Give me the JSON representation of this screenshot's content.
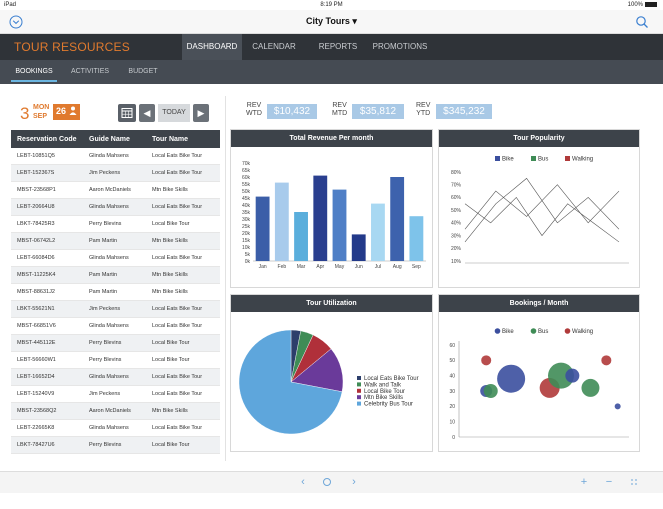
{
  "statusbar": {
    "device": "iPad",
    "time": "8:19 PM",
    "battery": "100%"
  },
  "navbar": {
    "title": "City Tours",
    "title_caret": "▾"
  },
  "menubar": {
    "brand": "TOUR RESOURCES",
    "tabs": [
      {
        "label": "DASHBOARD",
        "active": true
      },
      {
        "label": "CALENDAR",
        "active": false
      },
      {
        "label": "REPORTS",
        "active": false
      },
      {
        "label": "PROMOTIONS",
        "active": false
      }
    ]
  },
  "submenu": {
    "tabs": [
      {
        "label": "BOOKINGS",
        "active": true
      },
      {
        "label": "ACTIVITIES",
        "active": false
      },
      {
        "label": "BUDGET",
        "active": false
      }
    ]
  },
  "datebar": {
    "day": "3",
    "month": "MON",
    "month2": "SEP",
    "badge_count": "26",
    "today_label": "TODAY",
    "prev_label": "◀",
    "next_label": "▶"
  },
  "revenue": [
    {
      "label1": "REV",
      "label2": "WTD",
      "value": "$10,432"
    },
    {
      "label1": "REV",
      "label2": "MTD",
      "value": "$35,812"
    },
    {
      "label1": "REV",
      "label2": "YTD",
      "value": "$345,232"
    }
  ],
  "table": {
    "headers": [
      "Reservation Code",
      "Guide Name",
      "Tour Name"
    ],
    "rows": [
      [
        "LEBT-10851Q5",
        "Glinda Mahsens",
        "Local Eats Bike Tour"
      ],
      [
        "LEBT-152367S",
        "Jim Peckens",
        "Local Eats Bike Tour"
      ],
      [
        "MBST-23568P1",
        "Aaron McDaniels",
        "Mtn Bike Skills"
      ],
      [
        "LEBT-20664U8",
        "Glinda Mahsens",
        "Local Eats Bike Tour"
      ],
      [
        "LBKT-78425R3",
        "Perry Blevins",
        "Local Bike Tour"
      ],
      [
        "MBST-06742L2",
        "Pam Martin",
        "Mtn Bike Skills"
      ],
      [
        "LEBT-66084D6",
        "Glinda Mahsens",
        "Local Eats Bike Tour"
      ],
      [
        "MBST-11225K4",
        "Pam Martin",
        "Mtn Bike Skills"
      ],
      [
        "MBST-88631J2",
        "Pam Martin",
        "Mtn Bike Skills"
      ],
      [
        "LBKT-55621N1",
        "Jim Peckens",
        "Local Eats Bike Tour"
      ],
      [
        "MBST-66851V6",
        "Glinda Mahsens",
        "Local Eats Bike Tour"
      ],
      [
        "MBST-445112E",
        "Perry Blevins",
        "Local Bike Tour"
      ],
      [
        "LEBT-56660W1",
        "Perry Blevins",
        "Local Bike Tour"
      ],
      [
        "LEBT-16652D4",
        "Glinda Mahsens",
        "Local Eats Bike Tour"
      ],
      [
        "LEBT-15240V9",
        "Jim Peckens",
        "Local Eats Bike Tour"
      ],
      [
        "MBST-23568Q2",
        "Aaron McDaniels",
        "Mtn Bike Skills"
      ],
      [
        "LEBT-22665K8",
        "Glinda Mahsens",
        "Local Eats Bike Tour"
      ],
      [
        "LBKT-78427U6",
        "Perry Blevins",
        "Local Bike Tour"
      ]
    ]
  },
  "panels": {
    "revenue_title": "Total Revenue Per month",
    "popularity_title": "Tour Popularity",
    "utilization_title": "Tour Utilization",
    "bookings_title": "Bookings / Month"
  },
  "chart_data": [
    {
      "type": "bar",
      "title": "Total Revenue Per month",
      "categories": [
        "Jan",
        "Feb",
        "Mar",
        "Apr",
        "May",
        "Jun",
        "Jul",
        "Aug",
        "Sep"
      ],
      "values": [
        46,
        56,
        35,
        61,
        51,
        19,
        41,
        60,
        32
      ],
      "colors": [
        "#3b5ea8",
        "#a8cbec",
        "#5aaedc",
        "#2a3f8f",
        "#4f7fc6",
        "#233a8a",
        "#a8d8f2",
        "#3d62ad",
        "#7ec3ea"
      ],
      "yticks": [
        "0k",
        "5k",
        "10k",
        "15k",
        "20k",
        "25k",
        "30k",
        "35k",
        "40k",
        "45k",
        "50k",
        "55k",
        "60k",
        "65k",
        "70k"
      ],
      "ylim": [
        0,
        70
      ]
    },
    {
      "type": "line",
      "title": "Tour Popularity",
      "legend": [
        "Bike",
        "Bus",
        "Walking"
      ],
      "legend_colors": [
        "#3b4f9e",
        "#3f8c56",
        "#b03a3a"
      ],
      "yticks": [
        "10%",
        "20%",
        "30%",
        "40%",
        "50%",
        "60%",
        "70%",
        "80%"
      ],
      "ylim": [
        10,
        80
      ],
      "series": [
        {
          "name": "Bike",
          "values": [
            25,
            55,
            75,
            40,
            60,
            35
          ]
        },
        {
          "name": "Bus",
          "values": [
            35,
            65,
            45,
            70,
            40,
            65
          ]
        },
        {
          "name": "Walking",
          "values": [
            55,
            40,
            60,
            30,
            55,
            40,
            25
          ]
        }
      ]
    },
    {
      "type": "pie",
      "title": "Tour Utilization",
      "labels": [
        "Local Eats Bike Tour",
        "Walk and Talk",
        "Local Bike Tour",
        "Mtn Bike Skills",
        "Celebrity Bus Tour"
      ],
      "values": [
        3,
        4,
        7,
        14,
        72
      ],
      "colors": [
        "#2c3e6b",
        "#3f8c56",
        "#b0303a",
        "#6a3a9a",
        "#5ea6dc"
      ]
    },
    {
      "type": "scatter",
      "title": "Bookings / Month",
      "legend": [
        "Bike",
        "Bus",
        "Walking"
      ],
      "legend_colors": [
        "#3b4f9e",
        "#3f8c56",
        "#b03a3a"
      ],
      "yticks": [
        "0",
        "10",
        "20",
        "30",
        "40",
        "50",
        "60"
      ],
      "ylim": [
        0,
        60
      ],
      "points": [
        {
          "series": "Walking",
          "x": 1.2,
          "y": 50,
          "r": 5
        },
        {
          "series": "Bike",
          "x": 1.2,
          "y": 30,
          "r": 6
        },
        {
          "series": "Bus",
          "x": 1.4,
          "y": 30,
          "r": 7
        },
        {
          "series": "Bike",
          "x": 2.3,
          "y": 38,
          "r": 14
        },
        {
          "series": "Walking",
          "x": 4.0,
          "y": 32,
          "r": 10
        },
        {
          "series": "Bus",
          "x": 4.5,
          "y": 40,
          "r": 13
        },
        {
          "series": "Bike",
          "x": 5.0,
          "y": 40,
          "r": 7
        },
        {
          "series": "Bus",
          "x": 5.8,
          "y": 32,
          "r": 9
        },
        {
          "series": "Walking",
          "x": 6.5,
          "y": 50,
          "r": 5
        },
        {
          "series": "Bike",
          "x": 7.0,
          "y": 20,
          "r": 3
        }
      ],
      "xlim": [
        0,
        7.5
      ]
    }
  ],
  "bottombar": {
    "prev": "‹",
    "next": "›",
    "plus": "+",
    "minus": "−"
  }
}
